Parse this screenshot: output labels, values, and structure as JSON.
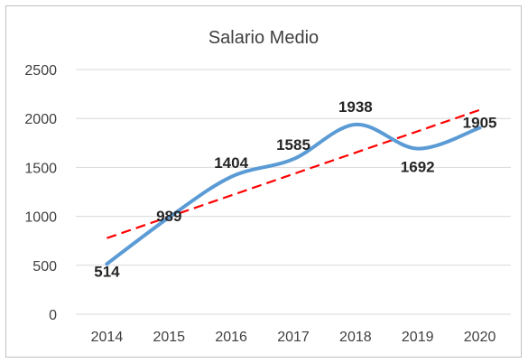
{
  "chart_data": {
    "type": "line",
    "title": "Salario Medio",
    "categories": [
      "2014",
      "2015",
      "2016",
      "2017",
      "2018",
      "2019",
      "2020"
    ],
    "series": [
      {
        "values": [
          514,
          989,
          1404,
          1585,
          1938,
          1692,
          1905
        ],
        "color": "#5b9bd5",
        "smooth": true
      }
    ],
    "trendline": {
      "type": "linear",
      "color": "#ff0000",
      "dashed": true
    },
    "ylim": [
      0,
      2500
    ],
    "yticks": [
      "0",
      "500",
      "1000",
      "1500",
      "2000",
      "2500"
    ],
    "data_labels": [
      "514",
      "989",
      "1404",
      "1585",
      "1938",
      "1692",
      "1905"
    ],
    "grid": true,
    "legend": "none"
  }
}
